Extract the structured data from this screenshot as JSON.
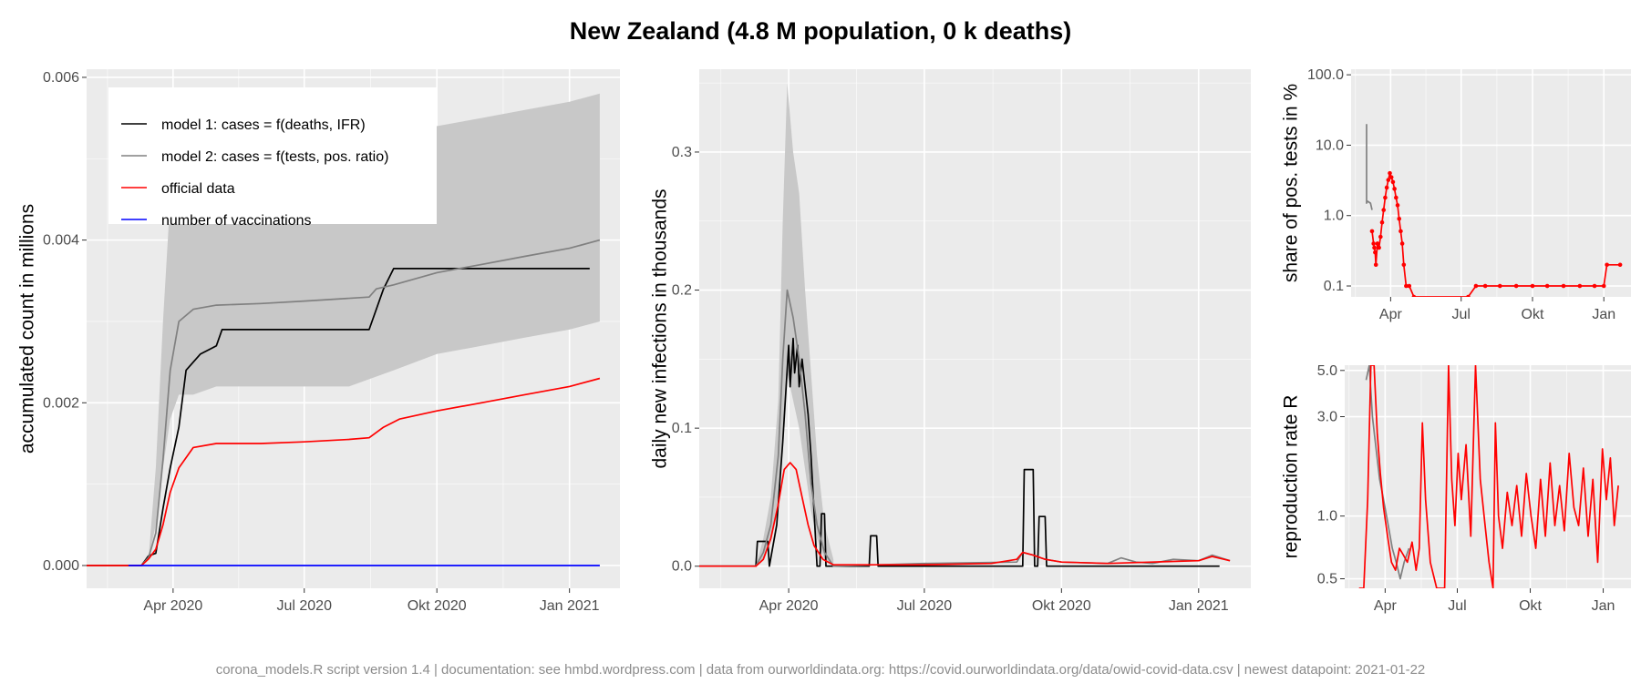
{
  "title": "New Zealand (4.8 M population, 0 k deaths)",
  "footer": "corona_models.R script version 1.4 | documentation: see hmbd.wordpress.com | data from ourworldindata.org: https://covid.ourworldindata.org/data/owid-covid-data.csv | newest datapoint: 2021-01-22",
  "colors": {
    "panel_bg": "#ebebeb",
    "grid": "#ffffff",
    "band": "#c8c8c8",
    "model1": "#000000",
    "model2": "#808080",
    "official": "#ff0000",
    "vaccinations": "#0000ff"
  },
  "chart_data": [
    {
      "id": "accumulated",
      "type": "line",
      "ylabel": "accumulated count in millions",
      "xlim": [
        "2020-02-01",
        "2021-02-05"
      ],
      "ylim": [
        -0.00028,
        0.0061
      ],
      "xticks": [
        {
          "date": "2020-04-01",
          "label": "Apr 2020"
        },
        {
          "date": "2020-07-01",
          "label": "Jul 2020"
        },
        {
          "date": "2020-10-01",
          "label": "Okt 2020"
        },
        {
          "date": "2021-01-01",
          "label": "Jan 2021"
        }
      ],
      "yticks": [
        {
          "value": 0,
          "label": "0.000"
        },
        {
          "value": 0.002,
          "label": "0.002"
        },
        {
          "value": 0.004,
          "label": "0.004"
        },
        {
          "value": 0.006,
          "label": "0.006"
        }
      ],
      "legend": {
        "position": "top-left",
        "entries": [
          {
            "label": "model 1: cases = f(deaths, IFR)",
            "color": "#000000"
          },
          {
            "label": "model 2: cases = f(tests, pos. ratio)",
            "color": "#808080"
          },
          {
            "label": "official data",
            "color": "#ff0000"
          },
          {
            "label": "number of vaccinations",
            "color": "#0000ff"
          }
        ]
      },
      "band": {
        "x": [
          "2020-03-15",
          "2020-03-20",
          "2020-03-25",
          "2020-03-30",
          "2020-04-05",
          "2020-04-15",
          "2020-05-01",
          "2020-06-01",
          "2020-07-01",
          "2020-08-01",
          "2020-09-01",
          "2020-10-01",
          "2020-11-01",
          "2020-12-01",
          "2021-01-01",
          "2021-01-22"
        ],
        "upper": [
          0.0001,
          0.0012,
          0.003,
          0.0045,
          0.0052,
          0.0053,
          0.0053,
          0.0053,
          0.0053,
          0.0053,
          0.0053,
          0.0054,
          0.0055,
          0.0056,
          0.0057,
          0.0058
        ],
        "lower": [
          0.0001,
          0.0005,
          0.0012,
          0.0018,
          0.0021,
          0.0021,
          0.0022,
          0.0022,
          0.0022,
          0.0022,
          0.0024,
          0.0026,
          0.0027,
          0.0028,
          0.0029,
          0.003
        ]
      },
      "series": [
        {
          "name": "model 1: cases = f(deaths, IFR)",
          "color": "#000000",
          "x": [
            "2020-02-01",
            "2020-03-10",
            "2020-03-15",
            "2020-03-20",
            "2020-03-25",
            "2020-03-30",
            "2020-04-05",
            "2020-04-10",
            "2020-04-20",
            "2020-05-01",
            "2020-05-05",
            "2020-08-10",
            "2020-08-15",
            "2020-08-25",
            "2020-09-01",
            "2021-01-15"
          ],
          "y": [
            0,
            0,
            0.00012,
            0.00015,
            0.0007,
            0.0012,
            0.0017,
            0.0024,
            0.0026,
            0.0027,
            0.0029,
            0.0029,
            0.0029,
            0.0034,
            0.00365,
            0.00365
          ]
        },
        {
          "name": "model 2: cases = f(tests, pos. ratio)",
          "color": "#808080",
          "x": [
            "2020-02-01",
            "2020-03-10",
            "2020-03-15",
            "2020-03-20",
            "2020-03-25",
            "2020-03-30",
            "2020-04-05",
            "2020-04-15",
            "2020-05-01",
            "2020-06-01",
            "2020-07-01",
            "2020-08-15",
            "2020-08-20",
            "2020-09-01",
            "2020-10-01",
            "2020-11-01",
            "2020-12-01",
            "2021-01-01",
            "2021-01-22"
          ],
          "y": [
            0,
            0,
            0.0001,
            0.0004,
            0.0013,
            0.0024,
            0.003,
            0.00315,
            0.0032,
            0.00322,
            0.00325,
            0.0033,
            0.0034,
            0.00345,
            0.0036,
            0.0037,
            0.0038,
            0.0039,
            0.004
          ]
        },
        {
          "name": "official data",
          "color": "#ff0000",
          "x": [
            "2020-02-01",
            "2020-03-10",
            "2020-03-15",
            "2020-03-20",
            "2020-03-25",
            "2020-03-30",
            "2020-04-05",
            "2020-04-15",
            "2020-05-01",
            "2020-06-01",
            "2020-07-01",
            "2020-08-01",
            "2020-08-15",
            "2020-08-25",
            "2020-09-05",
            "2020-10-01",
            "2020-11-01",
            "2020-12-01",
            "2021-01-01",
            "2021-01-22"
          ],
          "y": [
            0,
            0,
            8e-05,
            0.0002,
            0.0005,
            0.0009,
            0.0012,
            0.00145,
            0.0015,
            0.0015,
            0.00152,
            0.00155,
            0.00157,
            0.0017,
            0.0018,
            0.0019,
            0.002,
            0.0021,
            0.0022,
            0.0023
          ]
        },
        {
          "name": "number of vaccinations",
          "color": "#0000ff",
          "x": [
            "2020-03-01",
            "2021-01-22"
          ],
          "y": [
            0,
            0
          ]
        }
      ]
    },
    {
      "id": "daily",
      "type": "line",
      "ylabel": "daily new infections in thousands",
      "xlim": [
        "2020-02-01",
        "2021-02-05"
      ],
      "ylim": [
        -0.016,
        0.36
      ],
      "xticks": [
        {
          "date": "2020-04-01",
          "label": "Apr 2020"
        },
        {
          "date": "2020-07-01",
          "label": "Jul 2020"
        },
        {
          "date": "2020-10-01",
          "label": "Okt 2020"
        },
        {
          "date": "2021-01-01",
          "label": "Jan 2021"
        }
      ],
      "yticks": [
        {
          "value": 0,
          "label": "0.0"
        },
        {
          "value": 0.1,
          "label": "0.1"
        },
        {
          "value": 0.2,
          "label": "0.2"
        },
        {
          "value": 0.3,
          "label": "0.3"
        }
      ],
      "band": {
        "x": [
          "2020-03-10",
          "2020-03-15",
          "2020-03-20",
          "2020-03-25",
          "2020-03-28",
          "2020-03-31",
          "2020-04-04",
          "2020-04-08",
          "2020-04-12",
          "2020-04-16",
          "2020-04-20",
          "2020-04-25",
          "2020-05-01"
        ],
        "upper": [
          0,
          0.02,
          0.05,
          0.12,
          0.25,
          0.35,
          0.3,
          0.27,
          0.2,
          0.14,
          0.08,
          0.03,
          0.005
        ],
        "lower": [
          0,
          0.005,
          0.02,
          0.05,
          0.1,
          0.14,
          0.12,
          0.1,
          0.07,
          0.04,
          0.02,
          0.005,
          0
        ]
      },
      "series": [
        {
          "name": "model 1",
          "color": "#000000",
          "x": [
            "2020-02-01",
            "2020-03-10",
            "2020-03-11",
            "2020-03-18",
            "2020-03-19",
            "2020-03-24",
            "2020-03-28",
            "2020-04-01",
            "2020-04-02",
            "2020-04-04",
            "2020-04-05",
            "2020-04-07",
            "2020-04-08",
            "2020-04-10",
            "2020-04-12",
            "2020-04-14",
            "2020-04-16",
            "2020-04-18",
            "2020-04-20",
            "2020-04-22",
            "2020-04-23",
            "2020-04-25",
            "2020-04-26",
            "2020-04-28",
            "2020-05-01",
            "2020-05-25",
            "2020-05-26",
            "2020-05-30",
            "2020-05-31",
            "2020-06-01",
            "2020-09-05",
            "2020-09-06",
            "2020-09-12",
            "2020-09-13",
            "2020-09-15",
            "2020-09-16",
            "2020-09-20",
            "2020-09-21",
            "2021-01-15"
          ],
          "y": [
            0,
            0,
            0.018,
            0.018,
            0,
            0.03,
            0.09,
            0.16,
            0.13,
            0.165,
            0.14,
            0.16,
            0.13,
            0.15,
            0.13,
            0.11,
            0.08,
            0.04,
            0,
            0,
            0.038,
            0.038,
            0,
            0,
            0,
            0,
            0.022,
            0.022,
            0,
            0,
            0,
            0.07,
            0.07,
            0,
            0,
            0.036,
            0.036,
            0,
            0
          ]
        },
        {
          "name": "model 2",
          "color": "#808080",
          "x": [
            "2020-02-01",
            "2020-03-10",
            "2020-03-15",
            "2020-03-20",
            "2020-03-25",
            "2020-03-28",
            "2020-03-31",
            "2020-04-04",
            "2020-04-08",
            "2020-04-12",
            "2020-04-16",
            "2020-04-20",
            "2020-04-25",
            "2020-05-01",
            "2020-07-01",
            "2020-09-01",
            "2020-09-05",
            "2020-09-12",
            "2020-09-20",
            "2020-10-01",
            "2020-11-01",
            "2020-11-10",
            "2020-11-20",
            "2020-12-01",
            "2020-12-15",
            "2021-01-01",
            "2021-01-10",
            "2021-01-22"
          ],
          "y": [
            0,
            0,
            0.01,
            0.03,
            0.08,
            0.15,
            0.2,
            0.18,
            0.15,
            0.11,
            0.06,
            0.03,
            0.01,
            0,
            0.002,
            0.003,
            0.01,
            0.008,
            0.005,
            0.003,
            0.002,
            0.006,
            0.003,
            0.002,
            0.005,
            0.004,
            0.008,
            0.004
          ]
        },
        {
          "name": "official data",
          "color": "#ff0000",
          "x": [
            "2020-02-01",
            "2020-03-10",
            "2020-03-15",
            "2020-03-20",
            "2020-03-25",
            "2020-03-29",
            "2020-04-02",
            "2020-04-06",
            "2020-04-10",
            "2020-04-14",
            "2020-04-18",
            "2020-04-24",
            "2020-05-01",
            "2020-07-01",
            "2020-08-15",
            "2020-09-01",
            "2020-09-05",
            "2020-09-12",
            "2020-09-20",
            "2020-10-01",
            "2020-11-01",
            "2020-12-01",
            "2021-01-01",
            "2021-01-10",
            "2021-01-22"
          ],
          "y": [
            0,
            0,
            0.005,
            0.02,
            0.045,
            0.07,
            0.075,
            0.07,
            0.05,
            0.03,
            0.015,
            0.005,
            0.001,
            0.001,
            0.002,
            0.005,
            0.01,
            0.008,
            0.005,
            0.003,
            0.002,
            0.003,
            0.004,
            0.007,
            0.004
          ]
        }
      ]
    },
    {
      "id": "positive-share",
      "type": "line",
      "ylabel": "share of pos. tests in %",
      "yscale": "log10",
      "xlim": [
        "2020-02-10",
        "2021-02-05"
      ],
      "ylim": [
        0.07,
        120
      ],
      "xticks": [
        {
          "date": "2020-04-01",
          "label": "Apr"
        },
        {
          "date": "2020-07-01",
          "label": "Jul"
        },
        {
          "date": "2020-10-01",
          "label": "Okt"
        },
        {
          "date": "2021-01-01",
          "label": "Jan"
        }
      ],
      "yticks": [
        {
          "value": 0.1,
          "label": "0.1"
        },
        {
          "value": 1,
          "label": "1.0"
        },
        {
          "value": 10,
          "label": "10.0"
        },
        {
          "value": 100,
          "label": "100.0"
        }
      ],
      "series": [
        {
          "name": "model 2",
          "color": "#808080",
          "x": [
            "2020-03-01",
            "2020-03-01",
            "2020-03-02",
            "2020-03-06",
            "2020-03-08"
          ],
          "y": [
            20,
            1.5,
            1.6,
            1.5,
            1.2
          ]
        },
        {
          "name": "official data",
          "color": "#ff0000",
          "x": [
            "2020-03-08",
            "2020-03-10",
            "2020-03-11",
            "2020-03-12",
            "2020-03-13",
            "2020-03-15",
            "2020-03-17",
            "2020-03-19",
            "2020-03-21",
            "2020-03-23",
            "2020-03-25",
            "2020-03-27",
            "2020-03-29",
            "2020-03-31",
            "2020-04-02",
            "2020-04-04",
            "2020-04-06",
            "2020-04-08",
            "2020-04-10",
            "2020-04-12",
            "2020-04-14",
            "2020-04-16",
            "2020-04-18",
            "2020-04-21",
            "2020-04-25",
            "2020-05-01",
            "2020-07-10",
            "2020-07-20",
            "2020-08-01",
            "2020-08-20",
            "2020-09-10",
            "2020-10-01",
            "2020-10-20",
            "2020-11-10",
            "2020-12-01",
            "2020-12-20",
            "2021-01-01",
            "2021-01-05",
            "2021-01-22"
          ],
          "y": [
            0.6,
            0.4,
            0.35,
            0.3,
            0.2,
            0.4,
            0.35,
            0.5,
            0.8,
            1.2,
            1.8,
            2.5,
            3.2,
            4.0,
            3.5,
            3.0,
            2.4,
            1.8,
            1.4,
            0.9,
            0.6,
            0.4,
            0.2,
            0.1,
            0.1,
            0.07,
            0.07,
            0.1,
            0.1,
            0.1,
            0.1,
            0.1,
            0.1,
            0.1,
            0.1,
            0.1,
            0.1,
            0.2,
            0.2
          ]
        }
      ]
    },
    {
      "id": "reproduction",
      "type": "line",
      "ylabel": "reproduction rate R",
      "yscale": "log10",
      "xlim": [
        "2020-02-10",
        "2021-02-05"
      ],
      "ylim": [
        0.45,
        5.3
      ],
      "xticks": [
        {
          "date": "2020-04-01",
          "label": "Apr"
        },
        {
          "date": "2020-07-01",
          "label": "Jul"
        },
        {
          "date": "2020-10-01",
          "label": "Okt"
        },
        {
          "date": "2021-01-01",
          "label": "Jan"
        }
      ],
      "yticks": [
        {
          "value": 0.5,
          "label": "0.5"
        },
        {
          "value": 1.0,
          "label": "1.0"
        },
        {
          "value": 3.0,
          "label": "3.0"
        },
        {
          "value": 5.0,
          "label": "5.0"
        }
      ],
      "series": [
        {
          "name": "model 2",
          "color": "#808080",
          "x": [
            "2020-03-08",
            "2020-03-12",
            "2020-03-16",
            "2020-03-20",
            "2020-03-25",
            "2020-03-30",
            "2020-04-05",
            "2020-04-10",
            "2020-04-15",
            "2020-04-20",
            "2020-04-25",
            "2020-05-01"
          ],
          "y": [
            4.5,
            5.3,
            3.0,
            2.2,
            1.5,
            1.2,
            0.9,
            0.7,
            0.6,
            0.5,
            0.6,
            0.7
          ]
        },
        {
          "name": "official data",
          "color": "#ff0000",
          "x": [
            "2020-02-28",
            "2020-03-05",
            "2020-03-10",
            "2020-03-14",
            "2020-03-18",
            "2020-03-22",
            "2020-03-26",
            "2020-03-30",
            "2020-04-04",
            "2020-04-09",
            "2020-04-14",
            "2020-04-19",
            "2020-04-24",
            "2020-04-29",
            "2020-05-05",
            "2020-05-10",
            "2020-05-14",
            "2020-05-18",
            "2020-05-22",
            "2020-05-28",
            "2020-06-05",
            "2020-06-15",
            "2020-06-20",
            "2020-06-24",
            "2020-06-28",
            "2020-07-02",
            "2020-07-06",
            "2020-07-12",
            "2020-07-18",
            "2020-07-24",
            "2020-07-30",
            "2020-08-05",
            "2020-08-10",
            "2020-08-15",
            "2020-08-18",
            "2020-08-22",
            "2020-08-27",
            "2020-09-02",
            "2020-09-08",
            "2020-09-14",
            "2020-09-20",
            "2020-09-26",
            "2020-10-02",
            "2020-10-08",
            "2020-10-14",
            "2020-10-20",
            "2020-10-26",
            "2020-11-01",
            "2020-11-07",
            "2020-11-13",
            "2020-11-19",
            "2020-11-25",
            "2020-12-01",
            "2020-12-07",
            "2020-12-13",
            "2020-12-19",
            "2020-12-25",
            "2020-12-31",
            "2021-01-05",
            "2021-01-10",
            "2021-01-15",
            "2021-01-20"
          ],
          "y": [
            0.45,
            0.45,
            1.2,
            5.3,
            5.3,
            2.5,
            1.6,
            1.1,
            0.8,
            0.6,
            0.55,
            0.7,
            0.65,
            0.6,
            0.75,
            0.55,
            0.7,
            2.8,
            1.2,
            0.6,
            0.45,
            0.45,
            5.3,
            1.5,
            0.9,
            2.0,
            1.2,
            2.2,
            0.8,
            5.3,
            1.5,
            0.9,
            0.6,
            0.45,
            2.8,
            1.0,
            0.7,
            1.3,
            0.9,
            1.4,
            0.8,
            1.6,
            1.0,
            0.7,
            1.5,
            0.8,
            1.8,
            0.9,
            1.4,
            0.85,
            2.0,
            1.1,
            0.9,
            1.7,
            0.8,
            1.5,
            0.6,
            2.1,
            1.2,
            1.9,
            0.9,
            1.4
          ]
        }
      ]
    }
  ]
}
